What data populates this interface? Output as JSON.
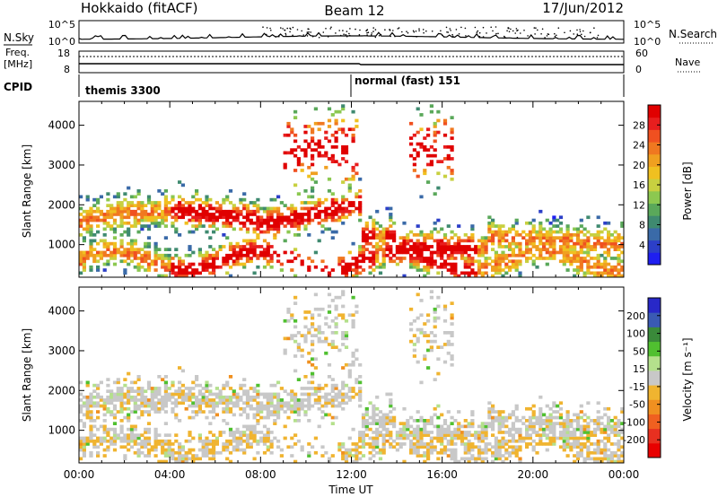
{
  "header": {
    "station": "Hokkaido (fitACF)",
    "beam": "Beam 12",
    "date": "17/Jun/2012"
  },
  "noise_panel": {
    "left_label": "N.Sky",
    "right_label": "N.Search",
    "left_ticks": [
      "10^5",
      "10^0"
    ],
    "right_ticks": [
      "10^5",
      "10^0"
    ]
  },
  "freq_panel": {
    "left_label_1": "Freq.",
    "left_label_2": "[MHz]",
    "left_ticks": [
      "18",
      "8"
    ],
    "right_ticks": [
      "60",
      "0"
    ],
    "right_label": "Nave"
  },
  "cpid": {
    "label": "CPID",
    "modes": [
      {
        "text": "themis 3300",
        "start_hour": 0.1
      },
      {
        "text": "normal (fast) 151",
        "start_hour": 12.1
      }
    ]
  },
  "chart_data": [
    {
      "type": "heatmap",
      "name": "power",
      "xlabel": "",
      "ylabel": "Slant Range [km]",
      "x_range_hours": [
        0,
        24
      ],
      "yticks": [
        1000,
        2000,
        3000,
        4000
      ],
      "ylim": [
        180,
        4600
      ],
      "colorbar": {
        "label": "Power [dB]",
        "ticks": [
          "4",
          "8",
          "12",
          "16",
          "20",
          "24",
          "28"
        ],
        "colors": [
          "#1f1ff0",
          "#2c3fc8",
          "#3a6aa8",
          "#3f8a70",
          "#5aa85a",
          "#8cc850",
          "#c8d040",
          "#f0c020",
          "#f0a020",
          "#f07820",
          "#f05020",
          "#e81e1e",
          "#e00000"
        ]
      }
    },
    {
      "type": "heatmap",
      "name": "velocity",
      "xlabel": "Time UT",
      "ylabel": "Slant Range [km]",
      "x_range_hours": [
        0,
        24
      ],
      "xticks": [
        "00:00",
        "04:00",
        "08:00",
        "12:00",
        "16:00",
        "20:00",
        "00:00"
      ],
      "yticks": [
        1000,
        2000,
        3000,
        4000
      ],
      "ylim": [
        180,
        4600
      ],
      "colorbar": {
        "label": "Velocity [m s⁻¹]",
        "ticks": [
          "200",
          "100",
          "50",
          "15",
          "-15",
          "-50",
          "-100",
          "-200"
        ],
        "colors": [
          "#2828c8",
          "#3a5ab4",
          "#3a8a3a",
          "#50c030",
          "#b4e08c",
          "#c8c8c8",
          "#f0b430",
          "#f09020",
          "#f06020",
          "#e83020",
          "#e80000"
        ]
      }
    }
  ]
}
